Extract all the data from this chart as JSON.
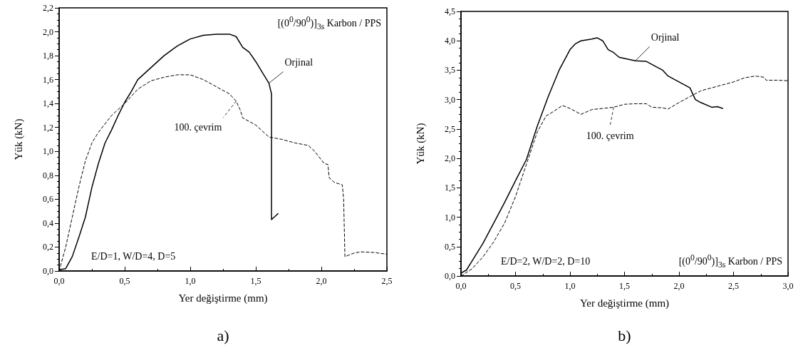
{
  "chart_data": [
    {
      "type": "line",
      "subtitle": "a)",
      "xlabel": "Yer değiştirme (mm)",
      "ylabel": "Yük (kN)",
      "marker": "none",
      "grid": false,
      "annotations": [
        "E/D=1, W/D=4, D=5",
        "[(0$^{0}$/90$^{0}$)]$_{3s}$ Karbon / PPS"
      ],
      "xlim": [
        0,
        2.5
      ],
      "xticks": [
        {
          "value": 0,
          "label": "0,0"
        },
        {
          "value": 0.5,
          "label": "0,5"
        },
        {
          "value": 1,
          "label": "1,0"
        },
        {
          "value": 1.5,
          "label": "1,5"
        },
        {
          "value": 2,
          "label": "2,0"
        },
        {
          "value": 2.5,
          "label": "2,5"
        }
      ],
      "ylim": [
        0,
        2.2
      ],
      "yticks": [
        {
          "value": 0,
          "label": "0,0"
        },
        {
          "value": 0.2,
          "label": "0,2"
        },
        {
          "value": 0.4,
          "label": "0,4"
        },
        {
          "value": 0.6,
          "label": "0,6"
        },
        {
          "value": 0.8,
          "label": "0,8"
        },
        {
          "value": 1,
          "label": "1,0"
        },
        {
          "value": 1.2,
          "label": "1,2"
        },
        {
          "value": 1.4,
          "label": "1,4"
        },
        {
          "value": 1.6,
          "label": "1,6"
        },
        {
          "value": 1.8,
          "label": "1,8"
        },
        {
          "value": 2,
          "label": "2,0"
        },
        {
          "value": 2.2,
          "label": "2,2"
        }
      ],
      "series": [
        {
          "name": "Orjinal",
          "color": "#000000",
          "line_style": "solid",
          "x": [
            0,
            0.05,
            0.1,
            0.15,
            0.2,
            0.25,
            0.3,
            0.35,
            0.4,
            0.45,
            0.5,
            0.55,
            0.6,
            0.7,
            0.8,
            0.9,
            1.0,
            1.1,
            1.2,
            1.3,
            1.35,
            1.4,
            1.45,
            1.5,
            1.55,
            1.6,
            1.62,
            1.62,
            1.63,
            1.67
          ],
          "values": [
            0.01,
            0.02,
            0.12,
            0.28,
            0.45,
            0.7,
            0.9,
            1.07,
            1.18,
            1.3,
            1.41,
            1.5,
            1.6,
            1.7,
            1.8,
            1.88,
            1.94,
            1.97,
            1.98,
            1.98,
            1.96,
            1.87,
            1.83,
            1.75,
            1.66,
            1.57,
            1.48,
            0.43,
            0.44,
            0.48
          ]
        },
        {
          "name": "100. çevrim",
          "color": "#000000",
          "line_style": "dashed",
          "x": [
            0,
            0.05,
            0.1,
            0.15,
            0.2,
            0.25,
            0.3,
            0.4,
            0.5,
            0.6,
            0.7,
            0.8,
            0.9,
            1.0,
            1.1,
            1.2,
            1.3,
            1.35,
            1.38,
            1.4,
            1.5,
            1.6,
            1.7,
            1.8,
            1.9,
            1.95,
            2.02,
            2.05,
            2.06,
            2.1,
            2.16,
            2.17,
            2.18,
            2.25,
            2.3,
            2.4,
            2.5
          ],
          "values": [
            0,
            0.2,
            0.45,
            0.7,
            0.92,
            1.07,
            1.16,
            1.3,
            1.4,
            1.52,
            1.59,
            1.62,
            1.64,
            1.64,
            1.6,
            1.54,
            1.48,
            1.42,
            1.35,
            1.28,
            1.22,
            1.12,
            1.1,
            1.07,
            1.05,
            1.0,
            0.9,
            0.89,
            0.78,
            0.74,
            0.72,
            0.6,
            0.12,
            0.15,
            0.16,
            0.155,
            0.14
          ]
        }
      ]
    },
    {
      "type": "line",
      "subtitle": "b)",
      "xlabel": "Yer değiştirme (mm)",
      "ylabel": "Yük (kN)",
      "marker": "none",
      "grid": false,
      "annotations": [
        "E/D=2, W/D=2, D=10",
        "[(0$^{0}$/90$^{0}$)]$_{3s}$ Karbon / PPS"
      ],
      "xlim": [
        0,
        3
      ],
      "xticks": [
        {
          "value": 0,
          "label": "0,0"
        },
        {
          "value": 0.5,
          "label": "0,5"
        },
        {
          "value": 1,
          "label": "1,0"
        },
        {
          "value": 1.5,
          "label": "1,5"
        },
        {
          "value": 2,
          "label": "2,0"
        },
        {
          "value": 2.5,
          "label": "2,5"
        },
        {
          "value": 3,
          "label": "3,0"
        }
      ],
      "ylim": [
        0,
        4.5
      ],
      "yticks": [
        {
          "value": 0,
          "label": "0,0"
        },
        {
          "value": 0.5,
          "label": "0,5"
        },
        {
          "value": 1,
          "label": "1,0"
        },
        {
          "value": 1.5,
          "label": "1,5"
        },
        {
          "value": 2,
          "label": "2,0"
        },
        {
          "value": 2.5,
          "label": "2,5"
        },
        {
          "value": 3,
          "label": "3,0"
        },
        {
          "value": 3.5,
          "label": "3,5"
        },
        {
          "value": 4,
          "label": "4,0"
        },
        {
          "value": 4.5,
          "label": "4,5"
        }
      ],
      "series": [
        {
          "name": "Orjinal",
          "color": "#000000",
          "line_style": "solid",
          "x": [
            0,
            0.05,
            0.1,
            0.2,
            0.3,
            0.4,
            0.5,
            0.6,
            0.63,
            0.7,
            0.8,
            0.9,
            1.0,
            1.05,
            1.1,
            1.2,
            1.25,
            1.3,
            1.35,
            1.4,
            1.45,
            1.5,
            1.6,
            1.7,
            1.8,
            1.85,
            1.9,
            2.0,
            2.1,
            2.15,
            2.2,
            2.3,
            2.35,
            2.4
          ],
          "values": [
            0.05,
            0.1,
            0.25,
            0.55,
            0.9,
            1.25,
            1.62,
            1.98,
            2.15,
            2.55,
            3.05,
            3.5,
            3.85,
            3.95,
            4.0,
            4.03,
            4.05,
            4.0,
            3.85,
            3.8,
            3.72,
            3.7,
            3.66,
            3.65,
            3.55,
            3.5,
            3.4,
            3.3,
            3.2,
            3.0,
            2.95,
            2.87,
            2.88,
            2.85
          ]
        },
        {
          "name": "100. çevrim",
          "color": "#000000",
          "line_style": "dashed",
          "x": [
            0,
            0.1,
            0.2,
            0.3,
            0.4,
            0.5,
            0.6,
            0.7,
            0.78,
            0.85,
            0.93,
            1.0,
            1.1,
            1.2,
            1.3,
            1.4,
            1.5,
            1.6,
            1.7,
            1.75,
            1.85,
            1.9,
            2.0,
            2.1,
            2.2,
            2.3,
            2.4,
            2.5,
            2.6,
            2.7,
            2.78,
            2.8,
            2.9,
            3.0
          ],
          "values": [
            0,
            0.12,
            0.32,
            0.58,
            0.9,
            1.35,
            1.9,
            2.45,
            2.72,
            2.8,
            2.9,
            2.85,
            2.75,
            2.83,
            2.85,
            2.87,
            2.92,
            2.93,
            2.93,
            2.87,
            2.86,
            2.84,
            2.95,
            3.05,
            3.15,
            3.2,
            3.25,
            3.3,
            3.37,
            3.4,
            3.38,
            3.33,
            3.33,
            3.32
          ]
        }
      ]
    }
  ]
}
